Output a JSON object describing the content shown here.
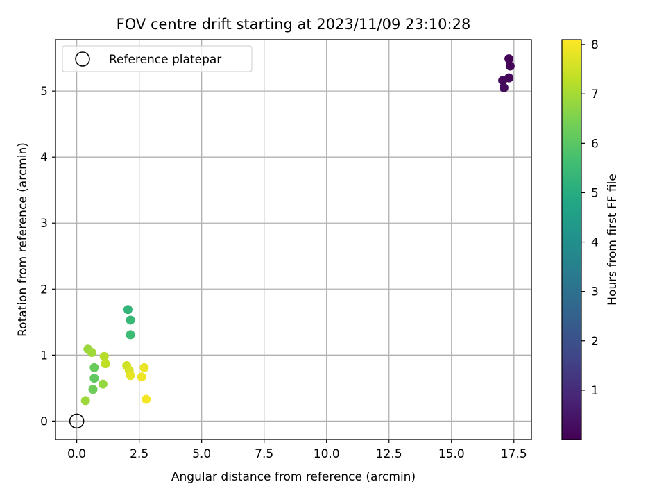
{
  "chart_data": {
    "type": "scatter",
    "title": "FOV centre drift starting at 2023/11/09 23:10:28",
    "xlabel": "Angular distance from reference (arcmin)",
    "ylabel": "Rotation from reference (arcmin)",
    "xlim": [
      -0.85,
      18.2
    ],
    "ylim": [
      -0.28,
      5.78
    ],
    "xticks": [
      0.0,
      2.5,
      5.0,
      7.5,
      10.0,
      12.5,
      15.0,
      17.5
    ],
    "xtick_labels": [
      "0.0",
      "2.5",
      "5.0",
      "7.5",
      "10.0",
      "12.5",
      "15.0",
      "17.5"
    ],
    "yticks": [
      0,
      1,
      2,
      3,
      4,
      5
    ],
    "ytick_labels": [
      "0",
      "1",
      "2",
      "3",
      "4",
      "5"
    ],
    "grid": true,
    "legend": {
      "position": "top-left",
      "entries": [
        "Reference platepar"
      ]
    },
    "reference_point": {
      "x": 0.0,
      "y": 0.0,
      "label": "Reference platepar"
    },
    "colorbar": {
      "label": "Hours from first FF file",
      "colormap": "viridis",
      "range": [
        0.0,
        8.1
      ],
      "ticks": [
        1,
        2,
        3,
        4,
        5,
        6,
        7,
        8
      ],
      "tick_labels": [
        "1",
        "2",
        "3",
        "4",
        "5",
        "6",
        "7",
        "8"
      ]
    },
    "points": [
      {
        "x": 17.3,
        "y": 5.49,
        "hours": 0.05
      },
      {
        "x": 17.35,
        "y": 5.38,
        "hours": 0.1
      },
      {
        "x": 17.3,
        "y": 5.2,
        "hours": 0.15
      },
      {
        "x": 17.05,
        "y": 5.16,
        "hours": 0.2
      },
      {
        "x": 17.1,
        "y": 5.05,
        "hours": 0.25
      },
      {
        "x": 2.05,
        "y": 1.69,
        "hours": 5.3
      },
      {
        "x": 2.15,
        "y": 1.53,
        "hours": 5.4
      },
      {
        "x": 2.15,
        "y": 1.31,
        "hours": 5.5
      },
      {
        "x": 0.7,
        "y": 0.81,
        "hours": 6.2
      },
      {
        "x": 0.7,
        "y": 0.65,
        "hours": 6.1
      },
      {
        "x": 0.65,
        "y": 0.48,
        "hours": 6.3
      },
      {
        "x": 1.05,
        "y": 0.56,
        "hours": 6.8
      },
      {
        "x": 0.35,
        "y": 0.31,
        "hours": 6.9
      },
      {
        "x": 0.45,
        "y": 1.09,
        "hours": 6.85
      },
      {
        "x": 0.6,
        "y": 1.04,
        "hours": 6.95
      },
      {
        "x": 1.1,
        "y": 0.98,
        "hours": 7.2
      },
      {
        "x": 1.15,
        "y": 0.87,
        "hours": 7.3
      },
      {
        "x": 2.0,
        "y": 0.84,
        "hours": 7.5
      },
      {
        "x": 2.1,
        "y": 0.77,
        "hours": 7.6
      },
      {
        "x": 2.15,
        "y": 0.69,
        "hours": 7.8
      },
      {
        "x": 2.6,
        "y": 0.67,
        "hours": 7.9
      },
      {
        "x": 2.7,
        "y": 0.81,
        "hours": 7.85
      },
      {
        "x": 2.78,
        "y": 0.33,
        "hours": 8.0
      }
    ]
  }
}
